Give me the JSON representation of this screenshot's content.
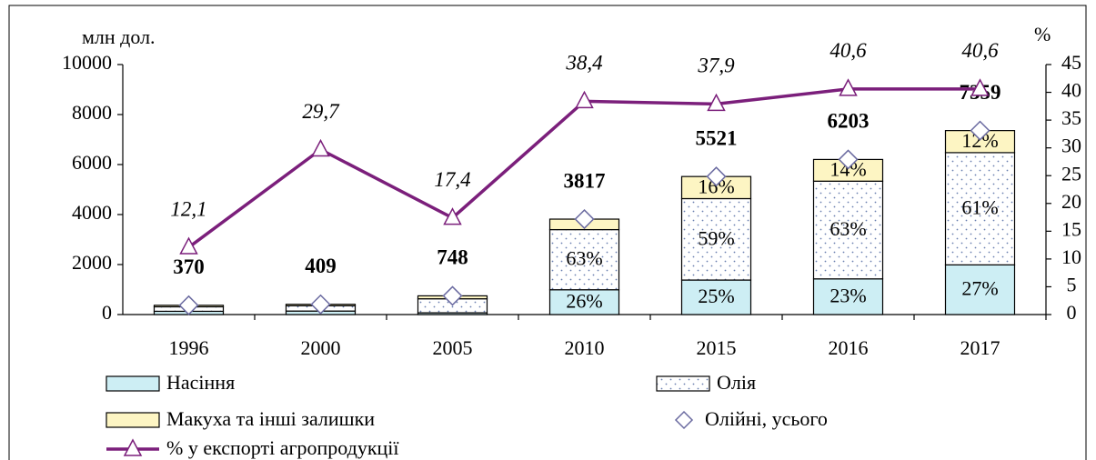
{
  "chart_data": {
    "type": "bar",
    "stacked": true,
    "categories": [
      "1996",
      "2000",
      "2005",
      "2010",
      "2015",
      "2016",
      "2017"
    ],
    "y_label": "млн дол.",
    "y2_label": "%",
    "ylim": [
      0,
      10000
    ],
    "yticks": [
      0,
      2000,
      4000,
      6000,
      8000,
      10000
    ],
    "y2lim": [
      0,
      45
    ],
    "y2ticks": [
      0,
      5,
      10,
      15,
      20,
      25,
      30,
      35,
      40,
      45
    ],
    "series": [
      {
        "name": "Насіння",
        "color": "#cdeef4",
        "values": [
          130,
          140,
          70,
          992,
          1380,
          1427,
          1987
        ],
        "segment_labels": [
          null,
          null,
          null,
          "26%",
          "25%",
          "23%",
          "27%"
        ]
      },
      {
        "name": "Олія",
        "color": "#ffffff",
        "pattern": "dots",
        "values": [
          180,
          210,
          560,
          2405,
          3257,
          3908,
          4489
        ],
        "segment_labels": [
          null,
          null,
          null,
          "63%",
          "59%",
          "63%",
          "61%"
        ]
      },
      {
        "name": "Макуха та інші залишки",
        "color": "#fdf5c3",
        "values": [
          60,
          59,
          118,
          420,
          884,
          868,
          883
        ],
        "segment_labels": [
          null,
          null,
          null,
          null,
          "16%",
          "14%",
          "12%"
        ]
      },
      {
        "name": "Олійні, усього",
        "type": "marker",
        "color": "#6a6aa0",
        "values": [
          370,
          409,
          748,
          3817,
          5521,
          6203,
          7359
        ]
      },
      {
        "name": "% у експорті агропродукції",
        "type": "line",
        "axis": "y2",
        "color": "#7b1f7b",
        "values": [
          12.1,
          29.7,
          17.4,
          38.4,
          37.9,
          40.6,
          40.6
        ],
        "value_labels": [
          "12,1",
          "29,7",
          "17,4",
          "38,4",
          "37,9",
          "40,6",
          "40,6"
        ]
      }
    ]
  }
}
